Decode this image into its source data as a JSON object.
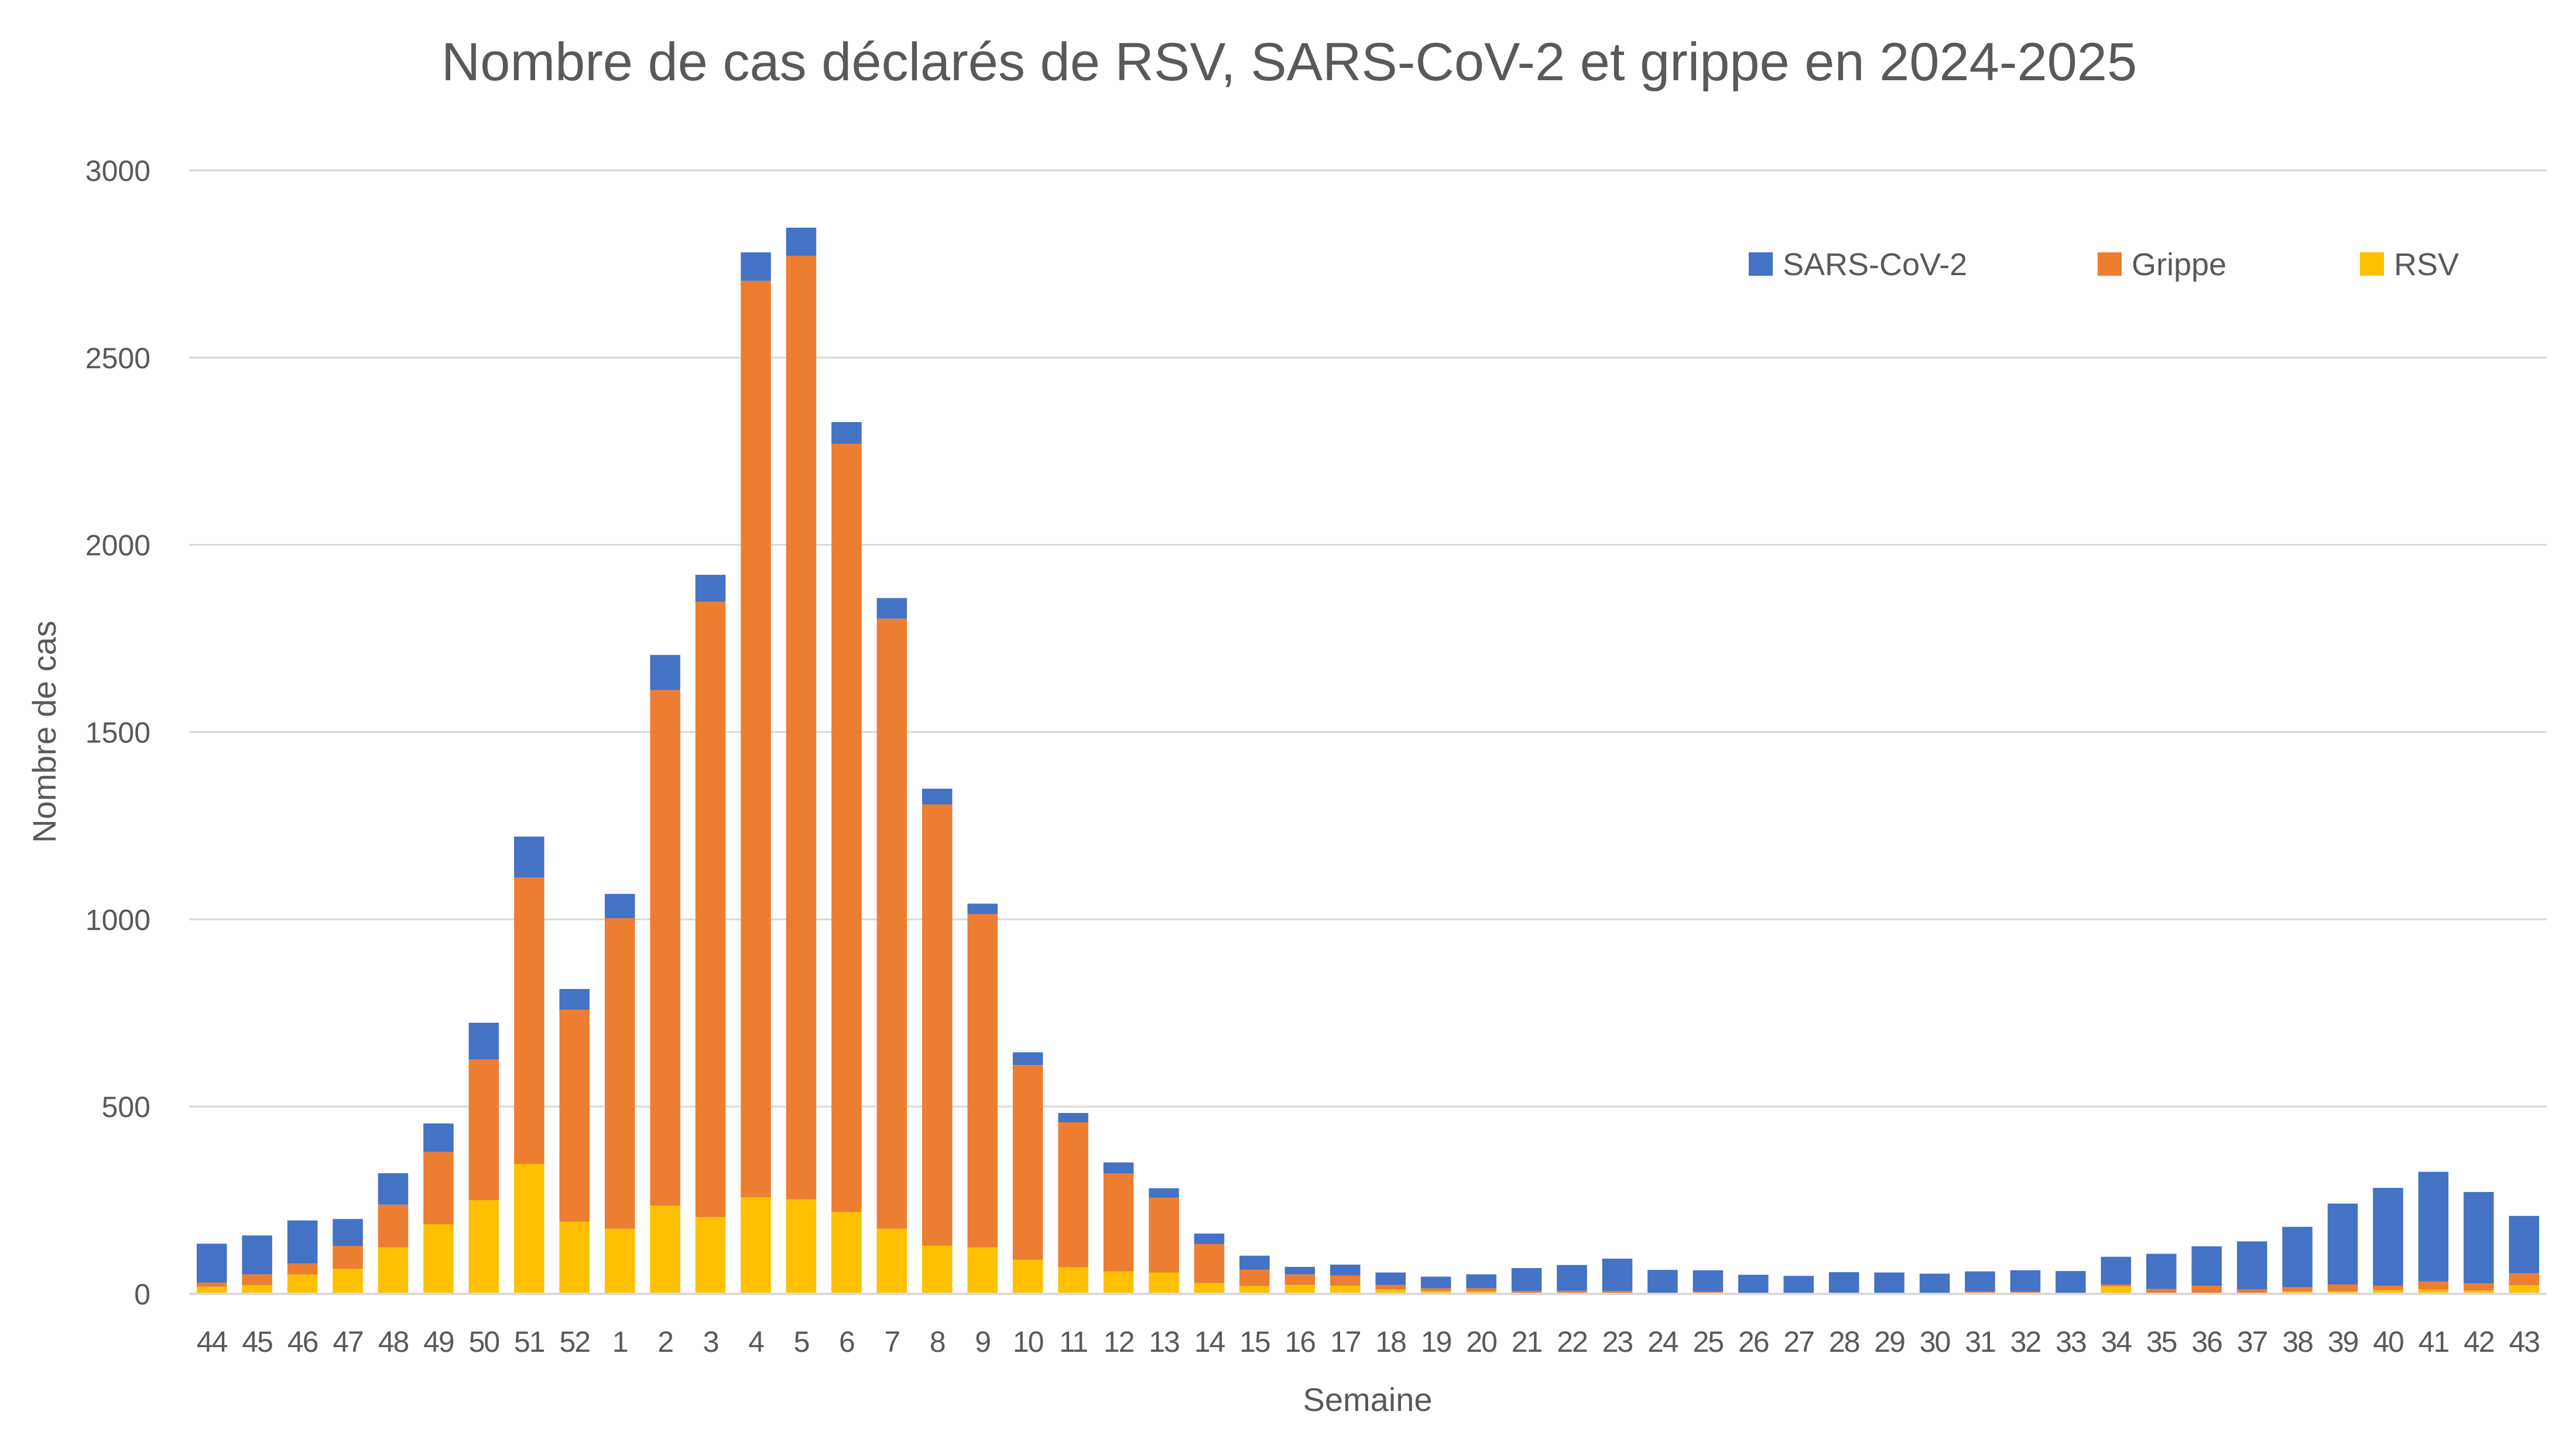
{
  "chart_data": {
    "type": "bar",
    "stacked": true,
    "title": "Nombre de cas déclarés de RSV, SARS-CoV-2 et grippe en 2024-2025",
    "xlabel": "Semaine",
    "ylabel": "Nombre de cas",
    "ylim": [
      0,
      3000
    ],
    "yticks": [
      0,
      500,
      1000,
      1500,
      2000,
      2500,
      3000
    ],
    "grid": true,
    "legend_position": "top-right",
    "categories": [
      "44",
      "45",
      "46",
      "47",
      "48",
      "49",
      "50",
      "51",
      "52",
      "1",
      "2",
      "3",
      "4",
      "5",
      "6",
      "7",
      "8",
      "9",
      "10",
      "11",
      "12",
      "13",
      "14",
      "15",
      "16",
      "17",
      "18",
      "19",
      "20",
      "21",
      "22",
      "23",
      "24",
      "25",
      "26",
      "27",
      "28",
      "29",
      "30",
      "31",
      "32",
      "33",
      "34",
      "35",
      "36",
      "37",
      "38",
      "39",
      "40",
      "41",
      "42",
      "43"
    ],
    "series": [
      {
        "name": "RSV",
        "color": "#FFC000",
        "values": [
          19,
          23,
          52,
          67,
          124,
          186,
          250,
          347,
          193,
          174,
          236,
          205,
          258,
          252,
          219,
          174,
          129,
          124,
          91,
          71,
          60,
          57,
          29,
          21,
          24,
          22,
          12,
          8,
          7,
          1,
          2,
          2,
          0,
          2,
          0,
          0,
          0,
          0,
          0,
          2,
          1,
          0,
          20,
          0,
          3,
          3,
          7,
          7,
          10,
          12,
          9,
          23
        ]
      },
      {
        "name": "Grippe",
        "color": "#ED7D31",
        "values": [
          11,
          29,
          29,
          61,
          114,
          193,
          376,
          765,
          566,
          829,
          1376,
          1643,
          2447,
          2520,
          2051,
          1629,
          1178,
          890,
          520,
          387,
          262,
          200,
          104,
          44,
          28,
          27,
          12,
          7,
          8,
          7,
          6,
          6,
          1,
          4,
          1,
          1,
          0,
          0,
          1,
          4,
          5,
          1,
          5,
          13,
          19,
          9,
          11,
          18,
          12,
          21,
          19,
          32
        ]
      },
      {
        "name": "SARS-CoV-2",
        "color": "#4472C4",
        "values": [
          104,
          104,
          115,
          72,
          84,
          76,
          98,
          109,
          55,
          65,
          94,
          72,
          76,
          75,
          58,
          55,
          42,
          28,
          34,
          25,
          29,
          25,
          28,
          37,
          20,
          29,
          33,
          31,
          37,
          61,
          69,
          86,
          63,
          57,
          50,
          47,
          58,
          57,
          53,
          54,
          57,
          60,
          74,
          94,
          105,
          128,
          161,
          216,
          261,
          293,
          244,
          153
        ]
      }
    ],
    "legend": [
      {
        "name": "SARS-CoV-2",
        "color": "#4472C4"
      },
      {
        "name": "Grippe",
        "color": "#ED7D31"
      },
      {
        "name": "RSV",
        "color": "#FFC000"
      }
    ]
  }
}
